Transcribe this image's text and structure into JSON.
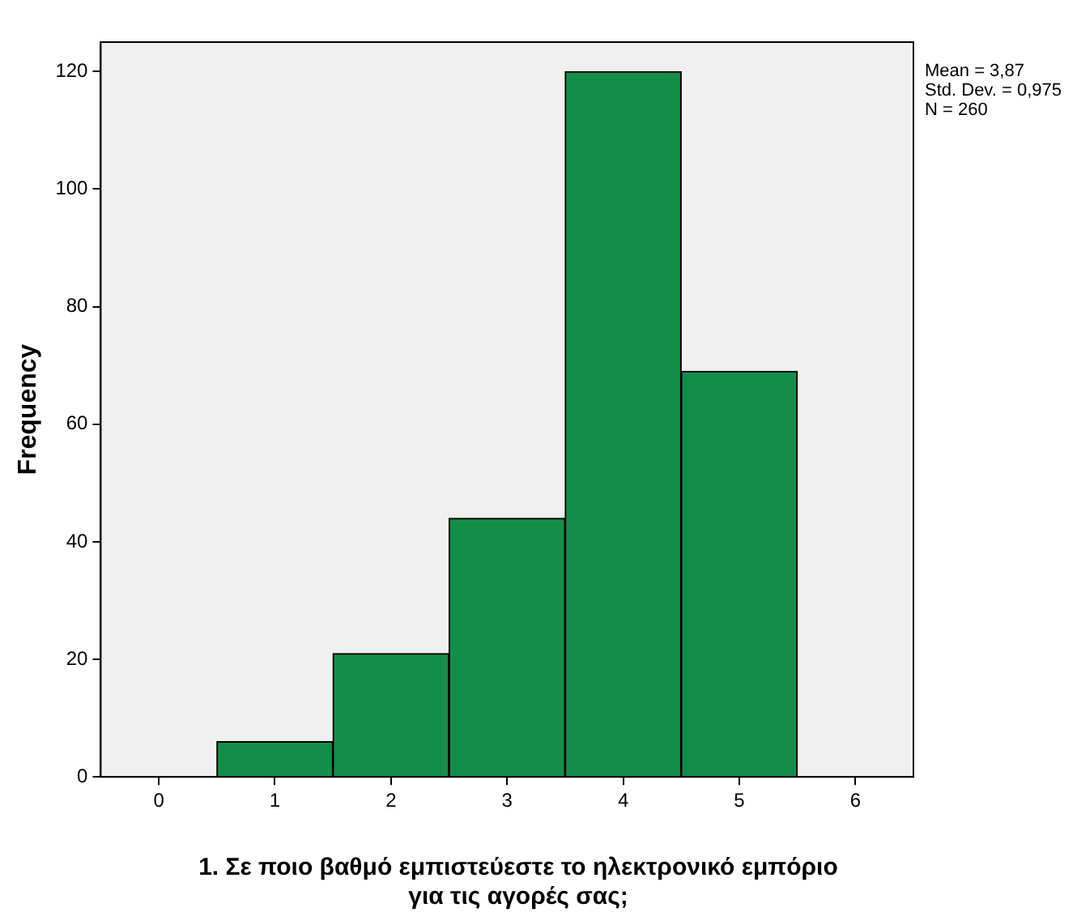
{
  "chart_data": {
    "type": "histogram",
    "bins": [
      0.5,
      1.5,
      2.5,
      3.5,
      4.5,
      5.5
    ],
    "values": [
      6,
      21,
      44,
      120,
      69
    ],
    "color": "#138e48",
    "xlim": [
      -0.5,
      6.5
    ],
    "xticks": [
      0,
      1,
      2,
      3,
      4,
      5,
      6
    ],
    "ylim": [
      0,
      125
    ],
    "yticks": [
      0,
      20,
      40,
      60,
      80,
      100,
      120
    ],
    "ylabel": "Frequency",
    "xlabel": "1.      Σε ποιο βαθμό εμπιστεύεστε το ηλεκτρονικό εμπόριο για τις αγορές σας;",
    "annotations": [
      "Mean = 3,87",
      "Std. Dev. = 0,975",
      "N = 260"
    ],
    "grid": false,
    "legend": false
  }
}
